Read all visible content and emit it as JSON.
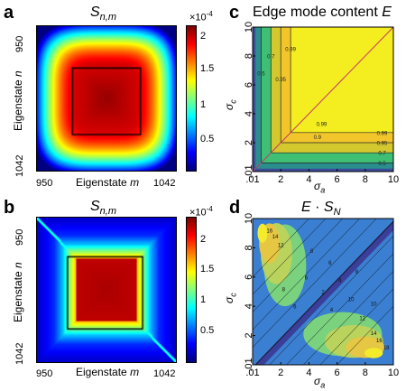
{
  "chart_data": [
    {
      "panel": "a",
      "type": "heatmap",
      "title": "S_{n,m}",
      "title_main": "S",
      "title_sub": "n,m",
      "xlabel_text": "Eigenstate",
      "xlabel_var": "m",
      "ylabel_text": "Eigenstate",
      "ylabel_var": "n",
      "x_ticks": [
        "950",
        "1042"
      ],
      "y_ticks": [
        "950",
        "1042"
      ],
      "colorbar": {
        "exponent_label": "×10",
        "exponent": "-4",
        "ticks": [
          "2",
          "1.5",
          "1",
          "0.5"
        ],
        "values": [
          2,
          1.5,
          1,
          0.5
        ],
        "range": [
          0.0,
          2.25
        ],
        "colormap": "jet"
      },
      "peak_value": 2.2,
      "inner_box": true
    },
    {
      "panel": "b",
      "type": "heatmap",
      "title": "S_{n,m}",
      "title_main": "S",
      "title_sub": "n,m",
      "xlabel_text": "Eigenstate",
      "xlabel_var": "m",
      "ylabel_text": "Eigenstate",
      "ylabel_var": "n",
      "x_ticks": [
        "950",
        "1042"
      ],
      "y_ticks": [
        "950",
        "1042"
      ],
      "colorbar": {
        "exponent_label": "×10",
        "exponent": "-4",
        "ticks": [
          "2",
          "1.5",
          "1",
          "0.5"
        ],
        "values": [
          2,
          1.5,
          1,
          0.5
        ],
        "range": [
          0.0,
          2.4
        ],
        "colormap": "jet"
      },
      "peak_value": 2.3,
      "inner_box": true
    },
    {
      "panel": "c",
      "type": "heatmap",
      "subtype": "contour",
      "title_text": "Edge mode content",
      "title_var": "E",
      "xlabel": "σ_a",
      "xlabel_main": "σ",
      "xlabel_sub": "a",
      "ylabel": "σ_c",
      "ylabel_main": "σ",
      "ylabel_sub": "c",
      "x_ticks": [
        ".01",
        "2",
        "4",
        "6",
        "8",
        "10"
      ],
      "y_ticks": [
        ".01",
        "2",
        "4",
        "6",
        "8",
        "10"
      ],
      "xlim": [
        0.01,
        10
      ],
      "ylim": [
        0.01,
        10
      ],
      "contour_levels": [
        0.5,
        0.7,
        0.9,
        0.95,
        0.99
      ],
      "contour_labels_visible": [
        "0.99",
        "0.95",
        "0.9",
        "0.7",
        "0.5"
      ],
      "colors": {
        "0.99+": "#f4ed1f",
        "0.95-0.99": "#f2c62b",
        "0.9-0.95": "#d4c82f",
        "0.7-0.9": "#3fbf73",
        "0.5-0.7": "#2a8f8c",
        "<0.5": "#3b4c9a"
      },
      "diagonal_line": true
    },
    {
      "panel": "d",
      "type": "heatmap",
      "subtype": "contour",
      "title_main": "E",
      "title_op": "·",
      "title_var": "S",
      "title_sub": "N",
      "xlabel": "σ_a",
      "xlabel_main": "σ",
      "xlabel_sub": "a",
      "ylabel": "σ_c",
      "ylabel_main": "σ",
      "ylabel_sub": "c",
      "x_ticks": [
        ".01",
        "2",
        "4",
        "6",
        "8",
        "10"
      ],
      "y_ticks": [
        ".01",
        "2",
        "4",
        "6",
        "8",
        "10"
      ],
      "xlim": [
        0.01,
        10
      ],
      "ylim": [
        0.01,
        10
      ],
      "contour_levels": [
        2,
        4,
        6,
        8,
        10,
        12,
        14,
        16,
        18
      ],
      "contour_labels_visible": [
        "2",
        "4",
        "6",
        "8",
        "10",
        "12",
        "14",
        "16",
        "18"
      ]
    }
  ],
  "labels": {
    "a": "a",
    "b": "b",
    "c": "c",
    "d": "d"
  }
}
